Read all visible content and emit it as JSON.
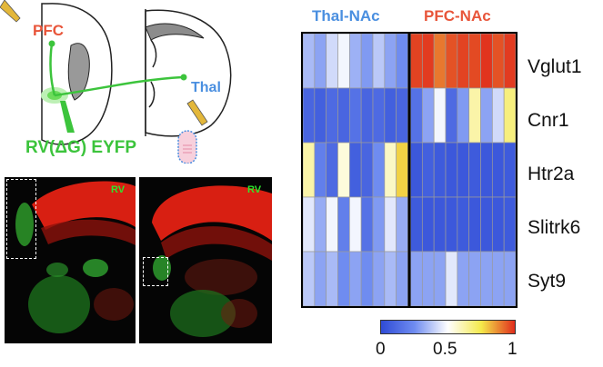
{
  "schematic": {
    "pfc_label": "PFC",
    "thal_label": "Thal",
    "virus_label": "RV(ΔG) EYFP",
    "colors": {
      "pfc": "#e8553a",
      "thal": "#4a8fe0",
      "virus": "#3cc43c",
      "pipette": "#e3b73a"
    }
  },
  "histology": {
    "left_tag": "RV",
    "right_tag": "RV"
  },
  "heatmap": {
    "groups": [
      {
        "label": "Thal-NAc",
        "color": "#4a8fe0"
      },
      {
        "label": "PFC-NAc",
        "color": "#e8553a"
      }
    ],
    "genes": [
      "Vglut1",
      "Cnr1",
      "Htr2a",
      "Slitrk6",
      "Syt9"
    ],
    "colorbar": {
      "ticks": [
        "0",
        "0.5",
        "1"
      ],
      "stops": [
        "#2f4bd6",
        "#6f8cf0",
        "#ffffff",
        "#f4e94a",
        "#e02c1c"
      ]
    }
  },
  "chart_data": {
    "type": "heatmap",
    "x_groups": [
      "Thal-NAc",
      "PFC-NAc"
    ],
    "cells_per_group": [
      9,
      9
    ],
    "rows": [
      "Vglut1",
      "Cnr1",
      "Htr2a",
      "Slitrk6",
      "Syt9"
    ],
    "values": [
      [
        0.35,
        0.3,
        0.42,
        0.48,
        0.33,
        0.28,
        0.38,
        0.3,
        0.25,
        0.97,
        0.98,
        0.9,
        0.95,
        0.97,
        0.96,
        0.99,
        0.95,
        0.98
      ],
      [
        0.1,
        0.08,
        0.12,
        0.1,
        0.15,
        0.1,
        0.12,
        0.08,
        0.1,
        0.15,
        0.3,
        0.48,
        0.12,
        0.28,
        0.62,
        0.3,
        0.42,
        0.68
      ],
      [
        0.62,
        0.2,
        0.12,
        0.55,
        0.08,
        0.1,
        0.25,
        0.58,
        0.78,
        0.05,
        0.08,
        0.06,
        0.05,
        0.05,
        0.06,
        0.05,
        0.05,
        0.06
      ],
      [
        0.45,
        0.32,
        0.48,
        0.2,
        0.48,
        0.15,
        0.28,
        0.45,
        0.32,
        0.06,
        0.05,
        0.05,
        0.05,
        0.06,
        0.05,
        0.05,
        0.05,
        0.06
      ],
      [
        0.38,
        0.3,
        0.35,
        0.25,
        0.3,
        0.25,
        0.3,
        0.35,
        0.3,
        0.3,
        0.3,
        0.3,
        0.45,
        0.3,
        0.3,
        0.3,
        0.3,
        0.3
      ]
    ],
    "colorbar_range": [
      0,
      1
    ]
  }
}
